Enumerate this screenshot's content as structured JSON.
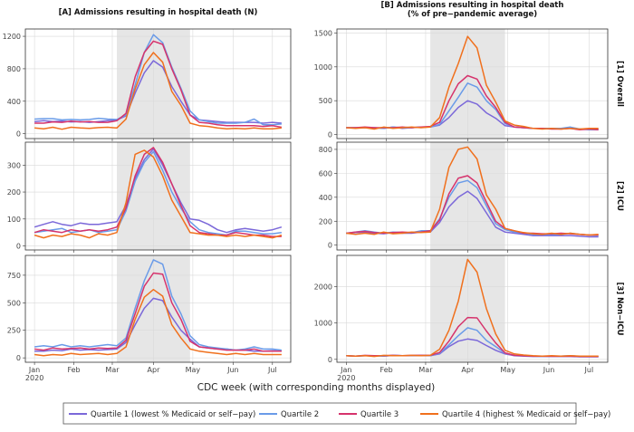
{
  "chart_data": {
    "type": "line",
    "column_titles": [
      [
        "[A] Admissions resulting in hospital death (N)"
      ],
      [
        "[B] Admissions resulting in hospital death",
        "(% of pre−pandemic average)"
      ]
    ],
    "row_labels": [
      "[1] Overall",
      "[2] ICU",
      "[3] Non−ICU"
    ],
    "xlabel": "CDC week (with corresponding months displayed)",
    "x_ticks": [
      {
        "w": 0,
        "label": "Jan",
        "label2": "2020"
      },
      {
        "w": 4.3,
        "label": "Feb",
        "label2": ""
      },
      {
        "w": 8.5,
        "label": "Mar",
        "label2": ""
      },
      {
        "w": 13,
        "label": "Apr",
        "label2": ""
      },
      {
        "w": 17.3,
        "label": "May",
        "label2": ""
      },
      {
        "w": 21.7,
        "label": "Jun",
        "label2": ""
      },
      {
        "w": 26,
        "label": "Jul",
        "label2": ""
      }
    ],
    "xlim": [
      -1,
      28
    ],
    "shaded_weeks": [
      9,
      17
    ],
    "weeks": [
      0,
      1,
      2,
      3,
      4,
      5,
      6,
      7,
      8,
      9,
      10,
      11,
      12,
      13,
      14,
      15,
      16,
      17,
      18,
      19,
      20,
      21,
      22,
      23,
      24,
      25,
      26,
      27
    ],
    "colors": {
      "Q1": "#7b68d9",
      "Q2": "#6a9be8",
      "Q3": "#d6336c",
      "Q4": "#f0701d"
    },
    "legend": [
      {
        "key": "Q1",
        "label": "Quartile 1 (lowest % Medicaid or self−pay)"
      },
      {
        "key": "Q2",
        "label": "Quartile 2"
      },
      {
        "key": "Q3",
        "label": "Quartile 3"
      },
      {
        "key": "Q4",
        "label": "Quartile 4 (highest % Medicaid or self−pay)"
      }
    ],
    "panels": [
      {
        "row": 0,
        "col": 0,
        "ylim": [
          -60,
          1290
        ],
        "yticks": [
          0,
          400,
          800,
          1200
        ],
        "series": {
          "Q1": [
            150,
            160,
            150,
            155,
            145,
            150,
            140,
            150,
            160,
            170,
            220,
            500,
            750,
            900,
            820,
            580,
            400,
            230,
            170,
            160,
            150,
            140,
            140,
            140,
            140,
            130,
            140,
            130
          ],
          "Q2": [
            180,
            185,
            185,
            170,
            175,
            170,
            175,
            190,
            180,
            175,
            230,
            600,
            1000,
            1220,
            1120,
            820,
            560,
            280,
            170,
            150,
            130,
            130,
            130,
            140,
            180,
            110,
            110,
            120
          ],
          "Q3": [
            130,
            130,
            145,
            140,
            155,
            145,
            150,
            140,
            140,
            160,
            250,
            700,
            1000,
            1140,
            1100,
            800,
            540,
            230,
            140,
            130,
            110,
            100,
            100,
            100,
            100,
            90,
            100,
            80
          ],
          "Q4": [
            70,
            60,
            80,
            55,
            80,
            70,
            65,
            75,
            80,
            70,
            180,
            550,
            850,
            1000,
            880,
            520,
            350,
            130,
            100,
            90,
            70,
            60,
            65,
            60,
            70,
            60,
            60,
            70
          ]
        }
      },
      {
        "row": 0,
        "col": 1,
        "ylim": [
          -60,
          1560
        ],
        "yticks": [
          0,
          500,
          1000,
          1500
        ],
        "series": {
          "Q1": [
            100,
            100,
            100,
            100,
            90,
            110,
            90,
            100,
            110,
            110,
            140,
            250,
            400,
            500,
            450,
            320,
            240,
            130,
            110,
            100,
            90,
            90,
            90,
            90,
            90,
            80,
            80,
            80
          ],
          "Q2": [
            100,
            100,
            100,
            100,
            90,
            110,
            100,
            100,
            110,
            110,
            150,
            350,
            550,
            760,
            700,
            500,
            370,
            160,
            110,
            100,
            90,
            90,
            90,
            90,
            110,
            80,
            70,
            70
          ],
          "Q3": [
            100,
            100,
            110,
            100,
            100,
            100,
            110,
            100,
            110,
            120,
            180,
            500,
            750,
            870,
            820,
            570,
            400,
            180,
            110,
            100,
            90,
            90,
            80,
            80,
            90,
            70,
            80,
            70
          ],
          "Q4": [
            100,
            90,
            100,
            80,
            110,
            90,
            100,
            110,
            100,
            110,
            250,
            700,
            1050,
            1450,
            1280,
            730,
            480,
            200,
            140,
            120,
            90,
            80,
            90,
            80,
            90,
            80,
            90,
            90
          ]
        }
      },
      {
        "row": 1,
        "col": 0,
        "ylim": [
          -15,
          385
        ],
        "yticks": [
          0,
          100,
          200,
          300
        ],
        "series": {
          "Q1": [
            70,
            80,
            90,
            80,
            75,
            85,
            80,
            80,
            85,
            90,
            150,
            250,
            320,
            360,
            300,
            230,
            160,
            100,
            95,
            80,
            60,
            50,
            60,
            65,
            60,
            55,
            60,
            70
          ],
          "Q2": [
            50,
            55,
            60,
            65,
            50,
            55,
            60,
            50,
            55,
            60,
            130,
            240,
            310,
            350,
            280,
            200,
            140,
            90,
            60,
            50,
            45,
            40,
            55,
            55,
            50,
            45,
            45,
            50
          ],
          "Q3": [
            50,
            60,
            55,
            50,
            60,
            55,
            60,
            55,
            60,
            70,
            140,
            260,
            340,
            365,
            310,
            230,
            150,
            75,
            50,
            45,
            40,
            40,
            50,
            45,
            40,
            40,
            35,
            35
          ],
          "Q4": [
            40,
            30,
            40,
            35,
            45,
            40,
            30,
            45,
            40,
            50,
            160,
            340,
            355,
            330,
            260,
            170,
            110,
            50,
            45,
            40,
            40,
            35,
            40,
            35,
            40,
            35,
            30,
            40
          ]
        }
      },
      {
        "row": 1,
        "col": 1,
        "ylim": [
          -40,
          860
        ],
        "yticks": [
          0,
          200,
          400,
          600,
          800
        ],
        "series": {
          "Q1": [
            100,
            105,
            110,
            100,
            95,
            105,
            100,
            100,
            110,
            110,
            190,
            320,
            400,
            450,
            390,
            270,
            150,
            110,
            100,
            90,
            80,
            80,
            80,
            80,
            80,
            75,
            70,
            70
          ],
          "Q2": [
            100,
            110,
            120,
            110,
            100,
            110,
            105,
            105,
            120,
            120,
            220,
            400,
            520,
            540,
            480,
            330,
            180,
            130,
            110,
            100,
            90,
            90,
            90,
            90,
            100,
            90,
            85,
            80
          ],
          "Q3": [
            100,
            110,
            115,
            105,
            100,
            105,
            110,
            105,
            110,
            120,
            210,
            430,
            560,
            580,
            520,
            360,
            200,
            140,
            120,
            100,
            100,
            95,
            95,
            100,
            95,
            90,
            85,
            85
          ],
          "Q4": [
            100,
            90,
            100,
            90,
            110,
            95,
            100,
            110,
            105,
            110,
            300,
            650,
            800,
            820,
            720,
            420,
            300,
            140,
            120,
            105,
            95,
            90,
            100,
            90,
            100,
            90,
            85,
            90
          ]
        }
      },
      {
        "row": 2,
        "col": 0,
        "ylim": [
          -40,
          930
        ],
        "yticks": [
          0,
          250,
          500,
          750
        ],
        "series": {
          "Q1": [
            60,
            60,
            70,
            65,
            80,
            70,
            75,
            70,
            75,
            80,
            140,
            300,
            450,
            540,
            520,
            370,
            250,
            170,
            100,
            90,
            80,
            80,
            70,
            70,
            60,
            60,
            65,
            60
          ],
          "Q2": [
            100,
            110,
            100,
            120,
            100,
            110,
            100,
            110,
            120,
            110,
            180,
            450,
            700,
            890,
            850,
            560,
            400,
            200,
            120,
            100,
            90,
            80,
            70,
            80,
            100,
            80,
            80,
            70
          ],
          "Q3": [
            80,
            70,
            90,
            80,
            85,
            90,
            80,
            90,
            85,
            90,
            160,
            400,
            650,
            770,
            760,
            500,
            350,
            150,
            100,
            90,
            80,
            70,
            70,
            70,
            80,
            60,
            60,
            60
          ],
          "Q4": [
            30,
            20,
            30,
            25,
            40,
            30,
            35,
            40,
            30,
            40,
            100,
            350,
            550,
            620,
            560,
            300,
            180,
            80,
            60,
            50,
            40,
            30,
            40,
            30,
            40,
            30,
            30,
            30
          ]
        }
      },
      {
        "row": 2,
        "col": 1,
        "ylim": [
          -80,
          2860
        ],
        "yticks": [
          0,
          1000,
          2000
        ],
        "series": {
          "Q1": [
            100,
            90,
            100,
            100,
            90,
            110,
            100,
            100,
            110,
            100,
            150,
            350,
            500,
            560,
            520,
            380,
            250,
            150,
            100,
            90,
            80,
            80,
            80,
            80,
            80,
            70,
            70,
            70
          ],
          "Q2": [
            100,
            90,
            100,
            100,
            90,
            110,
            100,
            100,
            110,
            100,
            170,
            400,
            650,
            870,
            800,
            520,
            350,
            170,
            110,
            100,
            90,
            90,
            90,
            90,
            100,
            80,
            80,
            80
          ],
          "Q3": [
            100,
            90,
            110,
            100,
            100,
            110,
            100,
            110,
            110,
            110,
            190,
            500,
            900,
            1150,
            1140,
            780,
            450,
            180,
            110,
            100,
            90,
            90,
            85,
            85,
            90,
            80,
            80,
            80
          ],
          "Q4": [
            100,
            90,
            100,
            80,
            110,
            100,
            100,
            110,
            100,
            110,
            280,
            800,
            1600,
            2750,
            2400,
            1400,
            700,
            250,
            150,
            120,
            100,
            90,
            100,
            90,
            100,
            90,
            90,
            90
          ]
        }
      }
    ]
  }
}
